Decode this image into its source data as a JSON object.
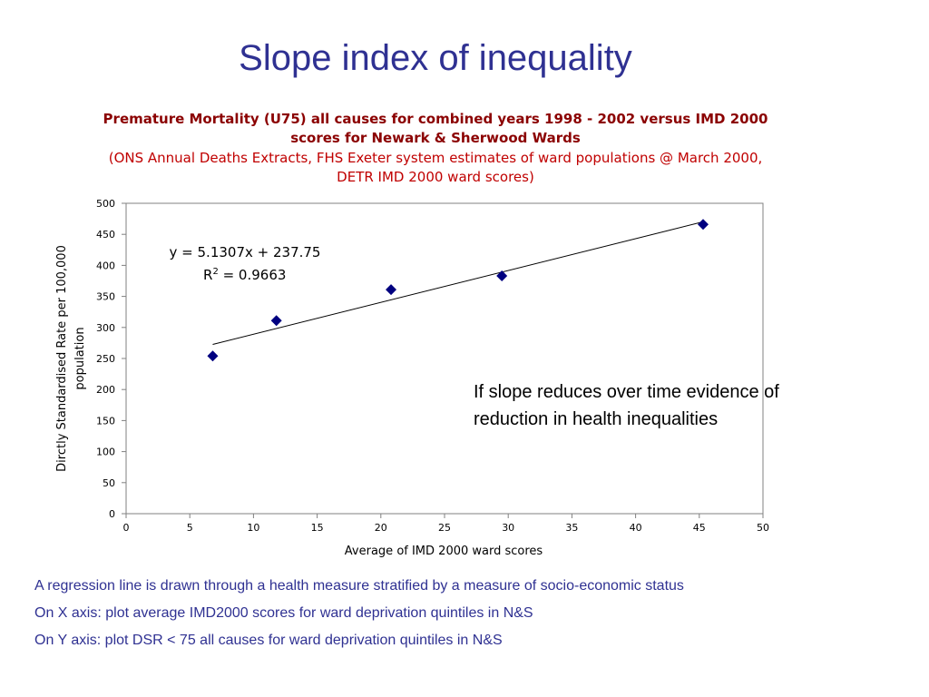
{
  "slide": {
    "title": "Slope index of inequality",
    "annotation": "If slope reduces over time evidence of reduction in health inequalities",
    "notes": [
      "A regression line is drawn through a health measure stratified by a measure of socio-economic status",
      "On X axis: plot average IMD2000 scores for ward deprivation quintiles in N&S",
      "On Y axis: plot DSR < 75 all causes for ward deprivation quintiles in N&S"
    ]
  },
  "chart_data": {
    "type": "scatter",
    "title": "Premature Mortality (U75) all causes for combined years 1998 - 2002 versus IMD 2000 scores for Newark & Sherwood Wards",
    "subtitle": "(ONS Annual Deaths Extracts, FHS Exeter system estimates of ward populations @ March 2000, DETR IMD 2000 ward scores)",
    "xlabel": "Average of IMD 2000 ward scores",
    "ylabel": "Dirctly Standardised Rate per 100,000 population",
    "xlim": [
      0,
      50
    ],
    "ylim": [
      0,
      500
    ],
    "xticks": [
      "0",
      "5",
      "10",
      "15",
      "20",
      "25",
      "30",
      "35",
      "40",
      "45",
      "50"
    ],
    "yticks": [
      "0",
      "50",
      "100",
      "150",
      "200",
      "250",
      "300",
      "350",
      "400",
      "450",
      "500"
    ],
    "x": [
      6.8,
      11.8,
      20.8,
      29.5,
      45.3
    ],
    "y": [
      254,
      311,
      361,
      383,
      466
    ],
    "trendline": {
      "slope": 5.1307,
      "intercept": 237.75,
      "x_range": [
        6.8,
        45.3
      ]
    },
    "equation": "y = 5.1307x + 237.75",
    "r2_prefix": "R",
    "r2_sup": "2",
    "r2_value": " = 0.9663",
    "grid": false,
    "marker_color": "#000080",
    "title_color": "#8b0000",
    "subtitle_color": "#c00000"
  },
  "colors": {
    "title": "#2f3192",
    "notes": "#2f3192"
  }
}
